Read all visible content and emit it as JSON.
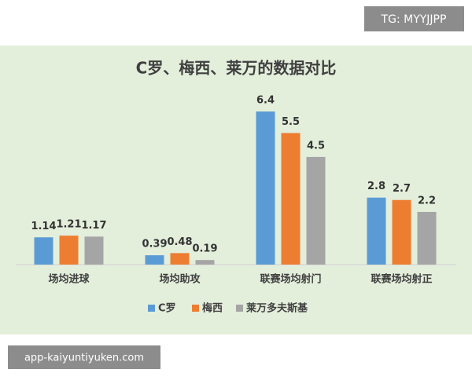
{
  "watermarks": {
    "top": "TG: MYYJJPP",
    "bottom": "app-kaiyuntiyuken.com"
  },
  "chart_data": {
    "type": "bar",
    "title": "C罗、梅西、莱万的数据对比",
    "categories": [
      "场均进球",
      "场均助攻",
      "联赛场均射门",
      "联赛场均射正"
    ],
    "series": [
      {
        "name": "C罗",
        "color": "#5b9bd5",
        "values": [
          1.14,
          0.39,
          6.4,
          2.8
        ]
      },
      {
        "name": "梅西",
        "color": "#ed7d31",
        "values": [
          1.21,
          0.48,
          5.5,
          2.7
        ]
      },
      {
        "name": "莱万多夫斯基",
        "color": "#a5a5a5",
        "values": [
          1.17,
          0.19,
          4.5,
          2.2
        ]
      }
    ],
    "legend": "bottom"
  }
}
